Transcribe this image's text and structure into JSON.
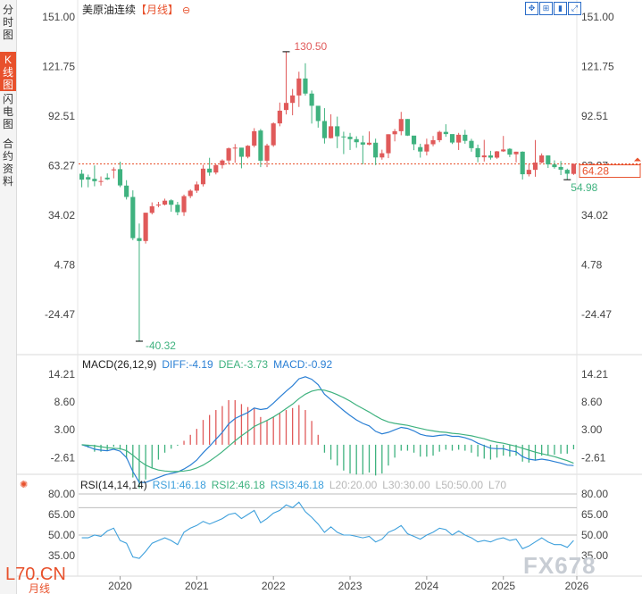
{
  "sidebar": {
    "tabs": [
      {
        "label": "分时图",
        "active": false
      },
      {
        "label": "K线图",
        "active": true
      },
      {
        "label": "闪电图",
        "active": false
      },
      {
        "label": "合约资料",
        "active": false
      }
    ]
  },
  "header": {
    "title": "美原油连续",
    "period": "【月线】",
    "period_icon": "circle-minus-icon",
    "tools": [
      "expand-icon",
      "crosshair-icon",
      "indicator-icon",
      "fullscreen-icon"
    ]
  },
  "price_axis": [
    "151.00",
    "121.75",
    "92.51",
    "63.27",
    "34.02",
    "4.78",
    "-24.47"
  ],
  "current_price": "64.28",
  "marks": {
    "high": "130.50",
    "low": "-40.32",
    "recent_low": "54.98"
  },
  "macd": {
    "title": "MACD(26,12,9)",
    "diff": "DIFF:-4.19",
    "dea": "DEA:-3.73",
    "macd": "MACD:-0.92",
    "axis": [
      "14.21",
      "8.60",
      "3.00",
      "-2.61"
    ]
  },
  "rsi": {
    "title": "RSI(14,14,14)",
    "rsi1": "RSI1:46.18",
    "rsi2": "RSI2:46.18",
    "rsi3": "RSI3:46.18",
    "l20": "L20:20.00",
    "l30": "L30:30.00",
    "l50": "L50:50.00",
    "l70": "L70",
    "axis": [
      "80.00",
      "65.00",
      "50.00",
      "35.00"
    ]
  },
  "x_axis": [
    "2020",
    "2021",
    "2022",
    "2023",
    "2024",
    "2025",
    "2026"
  ],
  "watermark": {
    "left": "L70.CN",
    "right": "FX678"
  },
  "footer_period": "月线",
  "colors": {
    "up": "#e05a5a",
    "down": "#3fb27f",
    "diff": "#2a7fd4",
    "dea": "#3fb27f",
    "current": "#e8512c",
    "rsi": "#3ea0dc"
  },
  "chart_data": {
    "type": "candlestick",
    "title": "美原油连续【月线】",
    "ylim": [
      -40.32,
      151.0
    ],
    "xlim": [
      "2019-07",
      "2025-12"
    ],
    "x": [
      "2019-07",
      "2019-08",
      "2019-09",
      "2019-10",
      "2019-11",
      "2019-12",
      "2020-01",
      "2020-02",
      "2020-03",
      "2020-04",
      "2020-05",
      "2020-06",
      "2020-07",
      "2020-08",
      "2020-09",
      "2020-10",
      "2020-11",
      "2020-12",
      "2021-01",
      "2021-02",
      "2021-03",
      "2021-04",
      "2021-05",
      "2021-06",
      "2021-07",
      "2021-08",
      "2021-09",
      "2021-10",
      "2021-11",
      "2021-12",
      "2022-01",
      "2022-02",
      "2022-03",
      "2022-04",
      "2022-05",
      "2022-06",
      "2022-07",
      "2022-08",
      "2022-09",
      "2022-10",
      "2022-11",
      "2022-12",
      "2023-01",
      "2023-02",
      "2023-03",
      "2023-04",
      "2023-05",
      "2023-06",
      "2023-07",
      "2023-08",
      "2023-09",
      "2023-10",
      "2023-11",
      "2023-12",
      "2024-01",
      "2024-02",
      "2024-03",
      "2024-04",
      "2024-05",
      "2024-06",
      "2024-07",
      "2024-08",
      "2024-09",
      "2024-10",
      "2024-11",
      "2024-12",
      "2025-01",
      "2025-02",
      "2025-03",
      "2025-04",
      "2025-05",
      "2025-06",
      "2025-07",
      "2025-08",
      "2025-09",
      "2025-10",
      "2025-11",
      "2025-12"
    ],
    "open": [
      58.5,
      56.5,
      55.5,
      54.0,
      56.2,
      60.5,
      61.2,
      51.5,
      44.8,
      20.5,
      18.8,
      35.4,
      39.8,
      40.3,
      42.8,
      40.2,
      35.8,
      45.3,
      48.5,
      52.3,
      61.5,
      59.2,
      63.6,
      66.3,
      73.5,
      73.9,
      68.5,
      75.1,
      84.0,
      66.2,
      75.3,
      88.2,
      96.1,
      100.3,
      104.7,
      114.7,
      105.8,
      98.6,
      89.6,
      79.5,
      86.5,
      80.5,
      80.3,
      78.9,
      77.0,
      75.7,
      76.8,
      68.1,
      70.6,
      81.8,
      83.6,
      90.8,
      81.0,
      74.2,
      71.6,
      75.9,
      78.3,
      83.2,
      81.9,
      76.9,
      81.5,
      77.9,
      73.6,
      68.2,
      69.3,
      68.0,
      71.7,
      73.2,
      70.0,
      71.5,
      58.2,
      60.8,
      65.1,
      69.3,
      64.0,
      62.5,
      60.8,
      58.4
    ],
    "close": [
      55.0,
      55.1,
      54.1,
      54.2,
      55.2,
      61.1,
      51.6,
      44.8,
      20.5,
      18.8,
      35.5,
      39.3,
      40.3,
      42.6,
      40.2,
      35.8,
      45.3,
      48.5,
      52.2,
      61.5,
      59.2,
      63.6,
      66.3,
      73.5,
      73.9,
      68.5,
      75.0,
      83.6,
      66.2,
      75.2,
      88.2,
      95.7,
      100.3,
      104.7,
      114.7,
      105.8,
      98.6,
      89.6,
      79.5,
      86.5,
      80.6,
      80.3,
      78.9,
      77.1,
      75.7,
      76.8,
      68.1,
      70.6,
      81.8,
      83.6,
      90.8,
      81.0,
      75.9,
      71.6,
      75.9,
      78.3,
      83.2,
      81.9,
      76.9,
      81.5,
      77.9,
      73.6,
      68.2,
      69.3,
      68.0,
      71.7,
      72.8,
      69.8,
      71.5,
      58.2,
      60.8,
      65.1,
      69.3,
      64.0,
      62.4,
      60.9,
      58.5,
      64.3
    ],
    "high": [
      60.9,
      58.0,
      63.4,
      56.9,
      58.7,
      62.3,
      65.6,
      54.7,
      48.7,
      29.1,
      35.5,
      41.6,
      41.9,
      43.8,
      43.4,
      41.9,
      46.2,
      49.3,
      53.9,
      63.8,
      67.9,
      64.1,
      67.0,
      74.0,
      76.0,
      73.8,
      75.4,
      85.4,
      84.9,
      76.2,
      88.8,
      100.5,
      130.5,
      108.5,
      118.7,
      123.7,
      107.6,
      97.7,
      97.2,
      93.6,
      92.2,
      83.3,
      82.6,
      80.6,
      81.0,
      83.5,
      79.2,
      72.7,
      81.8,
      84.9,
      95.0,
      90.8,
      80.8,
      76.2,
      79.2,
      80.8,
      83.9,
      87.7,
      81.7,
      82.6,
      84.4,
      79.1,
      75.7,
      78.5,
      72.0,
      71.9,
      80.8,
      73.6,
      71.5,
      71.7,
      64.2,
      78.4,
      70.5,
      69.4,
      66.4,
      66.0,
      61.5,
      64.5
    ],
    "low": [
      50.5,
      50.5,
      51.1,
      51.5,
      54.8,
      55.8,
      50.6,
      43.3,
      19.3,
      -40.32,
      17.3,
      34.5,
      38.7,
      39.8,
      36.1,
      34.0,
      33.6,
      44.1,
      47.2,
      51.0,
      57.3,
      58.1,
      61.6,
      64.2,
      65.0,
      61.7,
      67.6,
      74.1,
      62.4,
      62.4,
      74.4,
      86.5,
      93.5,
      93.0,
      97.9,
      104.6,
      88.1,
      85.7,
      76.3,
      79.3,
      73.6,
      70.1,
      72.5,
      73.8,
      64.1,
      75.3,
      63.6,
      66.8,
      67.7,
      77.6,
      81.2,
      80.8,
      72.4,
      68.0,
      69.3,
      74.7,
      77.1,
      80.3,
      76.0,
      72.5,
      76.2,
      71.5,
      65.3,
      65.7,
      66.8,
      67.3,
      71.4,
      68.3,
      65.2,
      55.1,
      56.9,
      56.7,
      64.7,
      61.9,
      61.5,
      57.7,
      54.98,
      57.8
    ],
    "macd_diff": [
      0.0,
      -0.4,
      -0.9,
      -1.1,
      -1.2,
      -0.9,
      -1.3,
      -2.6,
      -5.4,
      -7.6,
      -7.6,
      -7.1,
      -6.6,
      -6.1,
      -5.8,
      -5.5,
      -4.9,
      -4.1,
      -3.1,
      -1.6,
      -0.3,
      1.1,
      2.5,
      4.2,
      5.3,
      5.9,
      6.5,
      7.4,
      7.1,
      7.3,
      8.4,
      9.6,
      10.8,
      11.9,
      13.3,
      13.7,
      13.2,
      12.1,
      10.2,
      9.1,
      8.0,
      6.9,
      5.9,
      5.0,
      4.3,
      3.8,
      2.7,
      2.2,
      2.5,
      3.0,
      3.5,
      3.3,
      2.8,
      2.1,
      1.8,
      1.7,
      1.9,
      2.0,
      1.7,
      1.7,
      1.4,
      1.0,
      0.3,
      -0.2,
      -0.7,
      -0.8,
      -0.8,
      -1.2,
      -1.4,
      -2.4,
      -2.9,
      -3.1,
      -2.9,
      -3.1,
      -3.4,
      -3.7,
      -4.1,
      -4.19
    ],
    "macd_dea": [
      0.0,
      -0.1,
      -0.2,
      -0.4,
      -0.6,
      -0.7,
      -0.8,
      -1.2,
      -2.1,
      -3.2,
      -4.1,
      -4.7,
      -5.1,
      -5.3,
      -5.4,
      -5.4,
      -5.3,
      -5.1,
      -4.7,
      -4.1,
      -3.3,
      -2.4,
      -1.4,
      -0.3,
      0.8,
      1.8,
      2.7,
      3.7,
      4.3,
      4.9,
      5.6,
      6.4,
      7.3,
      8.2,
      9.3,
      10.2,
      10.8,
      11.1,
      11.0,
      10.6,
      10.1,
      9.5,
      8.8,
      8.0,
      7.3,
      6.6,
      5.8,
      5.1,
      4.6,
      4.3,
      4.1,
      3.9,
      3.6,
      3.3,
      3.0,
      2.8,
      2.6,
      2.5,
      2.3,
      2.2,
      2.0,
      1.8,
      1.5,
      1.2,
      0.8,
      0.5,
      0.3,
      0.0,
      -0.3,
      -0.7,
      -1.1,
      -1.5,
      -1.8,
      -2.1,
      -2.4,
      -2.8,
      -3.2,
      -3.73
    ],
    "rsi": [
      48,
      48,
      50,
      49,
      53,
      55,
      46,
      44,
      34,
      33,
      38,
      44,
      46,
      48,
      46,
      43,
      52,
      55,
      57,
      60,
      58,
      60,
      62,
      65,
      66,
      62,
      65,
      68,
      59,
      62,
      66,
      68,
      72,
      70,
      74,
      67,
      63,
      58,
      52,
      56,
      52,
      50,
      50,
      49,
      48,
      49,
      45,
      47,
      52,
      54,
      57,
      51,
      49,
      47,
      50,
      52,
      55,
      54,
      50,
      53,
      50,
      48,
      45,
      46,
      45,
      47,
      48,
      46,
      47,
      40,
      42,
      45,
      48,
      45,
      43,
      43,
      41,
      46
    ]
  }
}
